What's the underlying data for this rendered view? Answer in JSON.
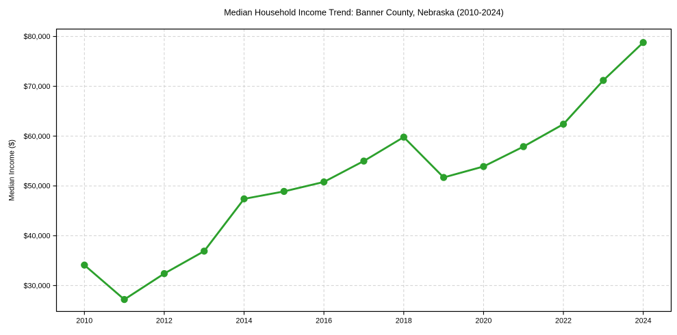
{
  "chart_data": {
    "type": "line",
    "title": "Median Household Income Trend: Banner County, Nebraska (2010-2024)",
    "xlabel": "",
    "ylabel": "Median Income ($)",
    "x": [
      2010,
      2011,
      2012,
      2013,
      2014,
      2015,
      2016,
      2017,
      2018,
      2019,
      2020,
      2021,
      2022,
      2023,
      2024
    ],
    "series": [
      {
        "name": "Median Household Income",
        "color": "#2ca02c",
        "marker": "circle",
        "values": [
          34100,
          27200,
          32400,
          36900,
          47400,
          48900,
          50800,
          55000,
          59800,
          51700,
          53900,
          57900,
          62400,
          71200,
          78800
        ]
      }
    ],
    "xlim": [
      2009.3,
      2024.7
    ],
    "ylim": [
      24800,
      81500
    ],
    "x_ticks": {
      "values": [
        2010,
        2012,
        2014,
        2016,
        2018,
        2020,
        2022,
        2024
      ],
      "labels": [
        "2010",
        "2012",
        "2014",
        "2016",
        "2018",
        "2020",
        "2022",
        "2024"
      ]
    },
    "y_ticks": {
      "values": [
        30000,
        40000,
        50000,
        60000,
        70000,
        80000
      ],
      "labels": [
        "$30,000",
        "$40,000",
        "$50,000",
        "$60,000",
        "$70,000",
        "$80,000"
      ]
    },
    "grid": {
      "show": true,
      "color": "#d0d0d0",
      "dash": "4 2.8"
    },
    "legend": {
      "show": false
    },
    "style": {
      "background": "#ffffff",
      "spine_color": "#000000",
      "text_color": "#000000",
      "line_width": 2.8,
      "marker_radius": 5.2,
      "tick_length": 5
    }
  }
}
